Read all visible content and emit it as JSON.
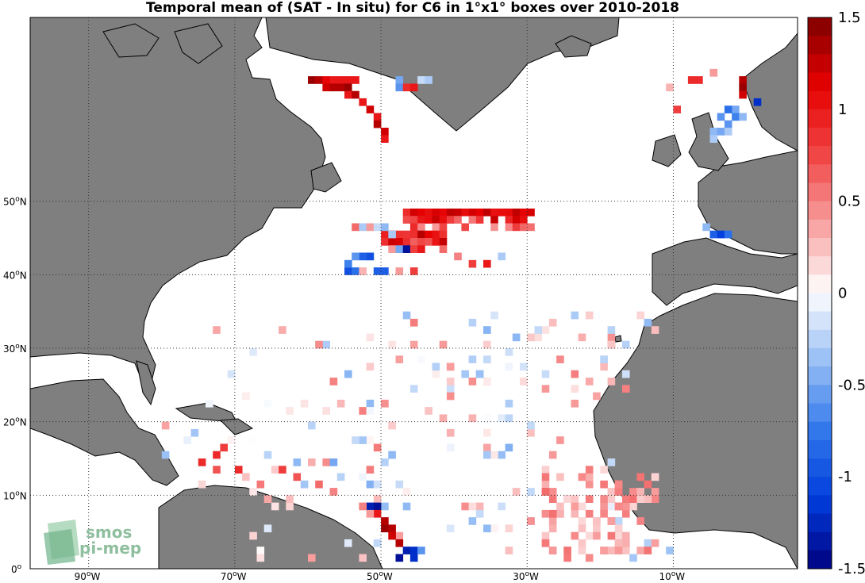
{
  "title": "Temporal mean of (SAT - In situ) for C6 in 1°x1° boxes over 2010-2018",
  "longitude_ticks": [
    {
      "deg": "90",
      "hemi": "W"
    },
    {
      "deg": "70",
      "hemi": "W"
    },
    {
      "deg": "50",
      "hemi": "W"
    },
    {
      "deg": "30",
      "hemi": "W"
    },
    {
      "deg": "10",
      "hemi": "W"
    }
  ],
  "latitude_ticks": [
    {
      "deg": "50",
      "hemi": "N"
    },
    {
      "deg": "40",
      "hemi": "N"
    },
    {
      "deg": "30",
      "hemi": "N"
    },
    {
      "deg": "20",
      "hemi": "N"
    },
    {
      "deg": "10",
      "hemi": "N"
    },
    {
      "deg": "0",
      "hemi": ""
    }
  ],
  "colorbar": {
    "range": [
      -1.5,
      1.5
    ],
    "tick_labels": [
      "1.5",
      "1",
      "0.5",
      "0",
      "-0.5",
      "-1",
      "-1.5"
    ]
  },
  "colors": {
    "land": "#7f7f7f",
    "ocean": "#ffffff",
    "positive_max": "#7f0000",
    "negative_max": "#00007f"
  },
  "logo": {
    "line1": "smos",
    "line2": "pi-mep"
  }
}
